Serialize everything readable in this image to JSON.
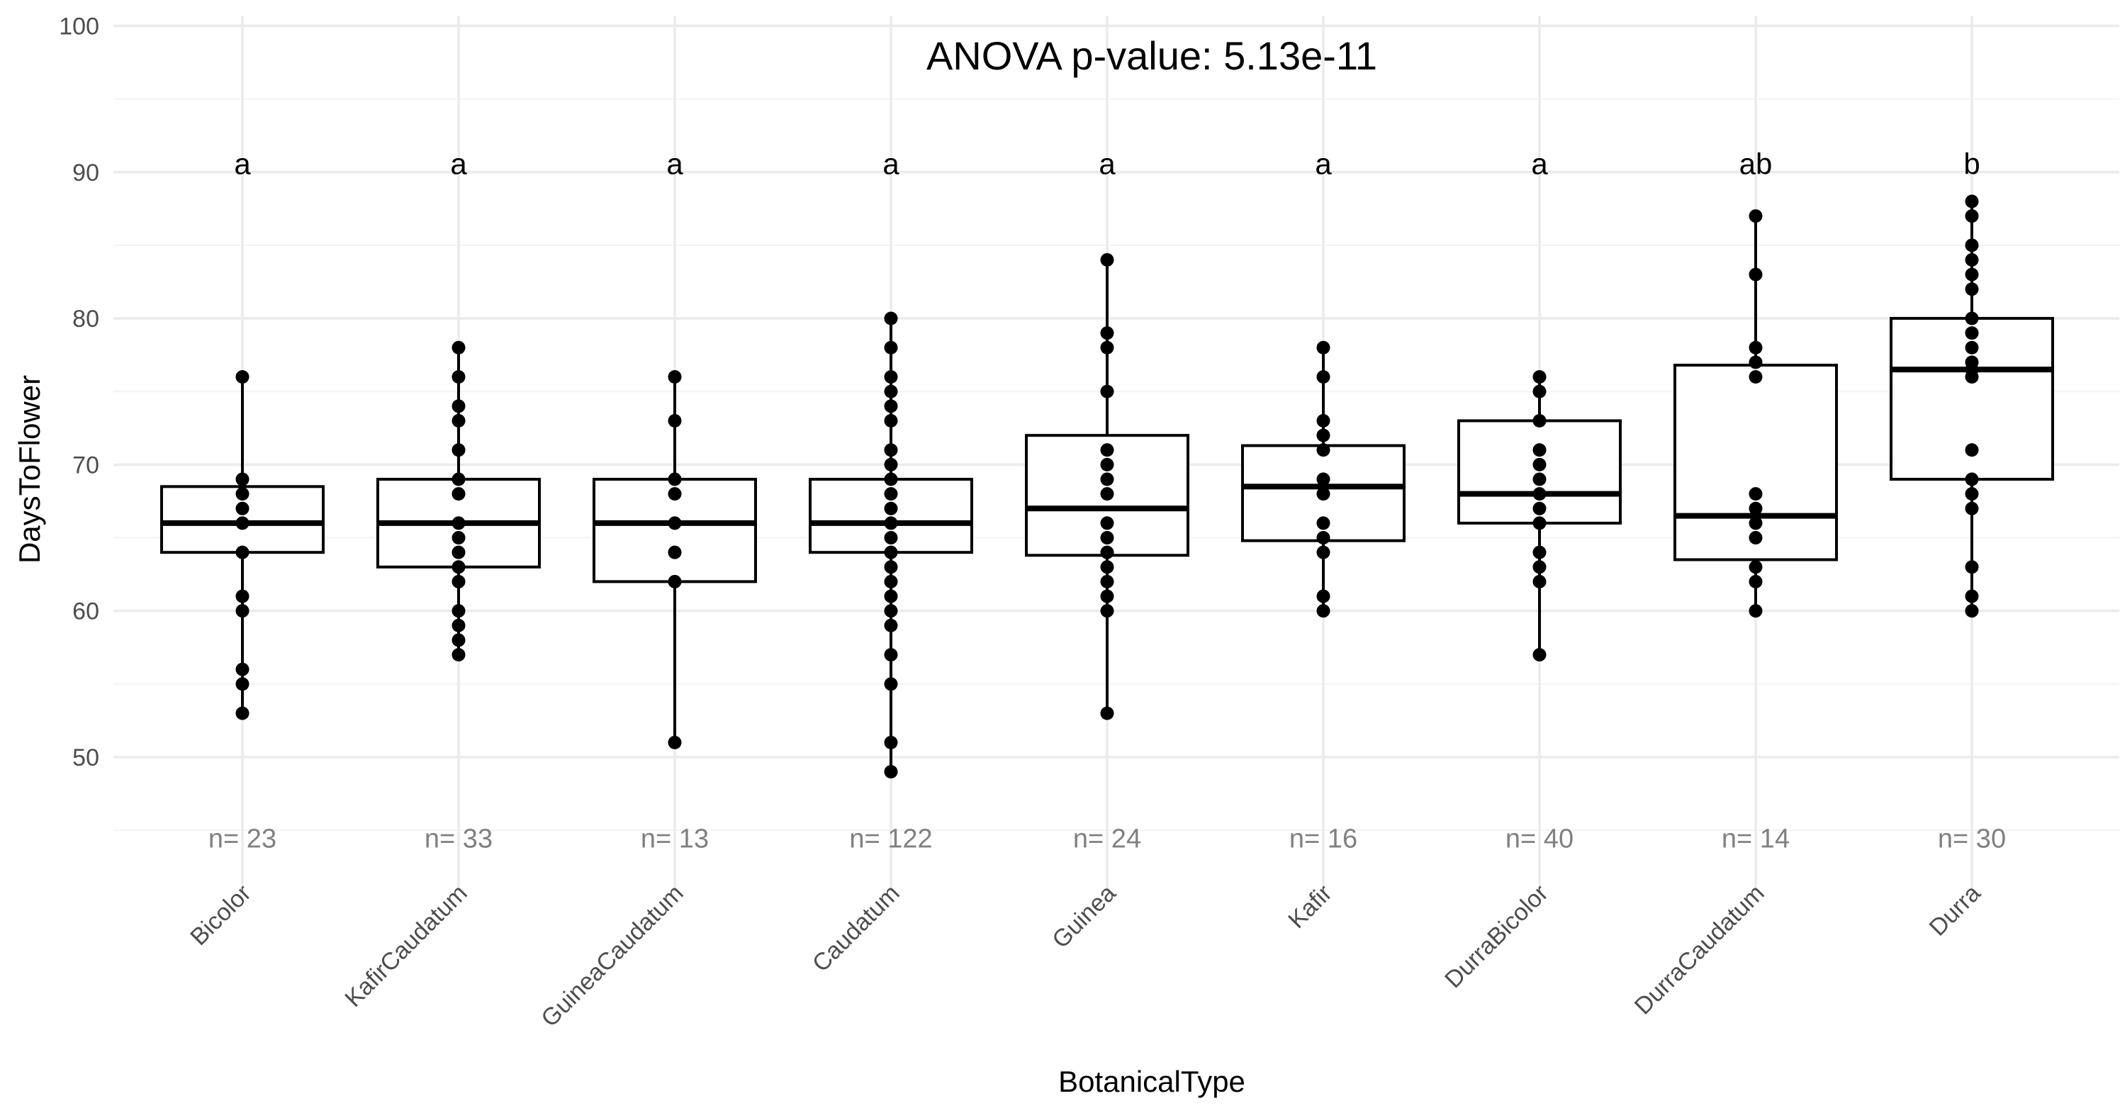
{
  "chart_data": {
    "type": "box",
    "title": "ANOVA p-value: 5.13e-11",
    "xlabel": "BotanicalType",
    "ylabel": "DaysToFlower",
    "ylim": [
      45,
      100
    ],
    "yticks": [
      50,
      60,
      70,
      80,
      90,
      100
    ],
    "grid": true,
    "colors": {
      "box": "#000000",
      "points": "#000000",
      "count_text": "#808080",
      "grid": "#ebebeb"
    },
    "categories": [
      "Bicolor",
      "KafirCaudatum",
      "GuineaCaudatum",
      "Caudatum",
      "Guinea",
      "Kafir",
      "DurraBicolor",
      "DurraCaudatum",
      "Durra"
    ],
    "letters": [
      "a",
      "a",
      "a",
      "a",
      "a",
      "a",
      "a",
      "ab",
      "b"
    ],
    "letter_y": 90.6,
    "count_labels": [
      "n= 23",
      "n= 33",
      "n= 13",
      "n= 122",
      "n= 24",
      "n= 16",
      "n= 40",
      "n= 14",
      "n= 30"
    ],
    "count_y": 44.5,
    "boxes": [
      {
        "q1": 64,
        "median": 66,
        "q3": 68.5,
        "whisker_low": 53,
        "whisker_high": 76
      },
      {
        "q1": 63,
        "median": 66,
        "q3": 69,
        "whisker_low": 57,
        "whisker_high": 78
      },
      {
        "q1": 62,
        "median": 66,
        "q3": 69,
        "whisker_low": 51,
        "whisker_high": 76
      },
      {
        "q1": 64,
        "median": 66,
        "q3": 69,
        "whisker_low": 49,
        "whisker_high": 80
      },
      {
        "q1": 63.8,
        "median": 67,
        "q3": 72,
        "whisker_low": 53,
        "whisker_high": 84
      },
      {
        "q1": 64.8,
        "median": 68.5,
        "q3": 71.3,
        "whisker_low": 60,
        "whisker_high": 78
      },
      {
        "q1": 66,
        "median": 68,
        "q3": 73,
        "whisker_low": 57,
        "whisker_high": 76
      },
      {
        "q1": 63.5,
        "median": 66.5,
        "q3": 76.8,
        "whisker_low": 60,
        "whisker_high": 87
      },
      {
        "q1": 69,
        "median": 76.5,
        "q3": 80,
        "whisker_low": 60,
        "whisker_high": 88
      }
    ],
    "points": [
      [
        53,
        55,
        56,
        60,
        61,
        64,
        66,
        67,
        68,
        69,
        76
      ],
      [
        57,
        58,
        59,
        60,
        62,
        63,
        64,
        65,
        66,
        68,
        69,
        71,
        73,
        74,
        76,
        78
      ],
      [
        51,
        62,
        64,
        66,
        68,
        69,
        73,
        76
      ],
      [
        49,
        51,
        55,
        57,
        59,
        60,
        61,
        62,
        63,
        64,
        65,
        66,
        67,
        68,
        69,
        70,
        71,
        73,
        74,
        75,
        76,
        78,
        80
      ],
      [
        53,
        60,
        61,
        62,
        63,
        64,
        65,
        66,
        68,
        69,
        70,
        71,
        75,
        78,
        79,
        84
      ],
      [
        60,
        61,
        64,
        65,
        66,
        68,
        69,
        71,
        72,
        73,
        76,
        78
      ],
      [
        57,
        62,
        63,
        64,
        66,
        67,
        68,
        69,
        70,
        71,
        73,
        75,
        76
      ],
      [
        60,
        62,
        63,
        65,
        66,
        67,
        68,
        76,
        77,
        78,
        83,
        87
      ],
      [
        60,
        61,
        63,
        67,
        68,
        69,
        71,
        76,
        76.5,
        77,
        78,
        79,
        80,
        82,
        83,
        84,
        85,
        87,
        88
      ]
    ]
  }
}
